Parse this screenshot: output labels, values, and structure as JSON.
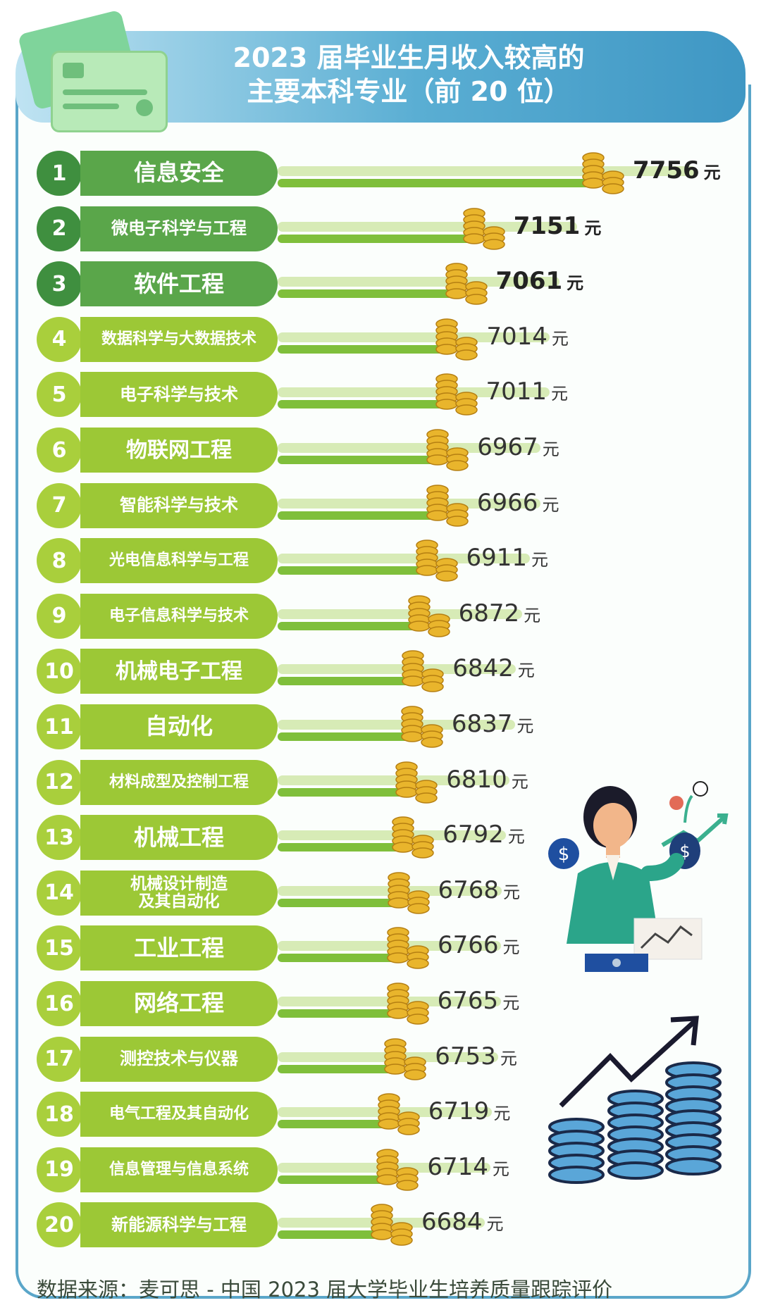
{
  "header": {
    "title_line1": "2023 届毕业生月收入较高的",
    "title_line2": "主要本科专业（前 20 位）"
  },
  "chart_data": {
    "type": "bar",
    "orientation": "horizontal",
    "title": "2023 届毕业生月收入较高的主要本科专业（前 20 位）",
    "unit": "元",
    "categories": [
      "信息安全",
      "微电子科学与工程",
      "软件工程",
      "数据科学与大数据技术",
      "电子科学与技术",
      "物联网工程",
      "智能科学与技术",
      "光电信息科学与工程",
      "电子信息科学与技术",
      "机械电子工程",
      "自动化",
      "材料成型及控制工程",
      "机械工程",
      "机械设计制造及其自动化",
      "工业工程",
      "网络工程",
      "测控技术与仪器",
      "电气工程及其自动化",
      "信息管理与信息系统",
      "新能源科学与工程"
    ],
    "ranks": [
      "1",
      "2",
      "3",
      "4",
      "5",
      "6",
      "7",
      "8",
      "9",
      "10",
      "11",
      "12",
      "13",
      "14",
      "15",
      "16",
      "17",
      "18",
      "19",
      "20"
    ],
    "values": [
      7756,
      7151,
      7061,
      7014,
      7011,
      6967,
      6966,
      6911,
      6872,
      6842,
      6837,
      6810,
      6792,
      6768,
      6766,
      6765,
      6753,
      6719,
      6714,
      6684
    ],
    "value_labels": [
      "7756",
      "7151",
      "7061",
      "7014",
      "7011",
      "6967",
      "6966",
      "6911",
      "6872",
      "6842",
      "6837",
      "6810",
      "6792",
      "6768",
      "6766",
      "6765",
      "6753",
      "6719",
      "6714",
      "6684"
    ],
    "name_line_breaks": {
      "13": [
        "机械设计制造",
        "及其自动化"
      ]
    }
  },
  "colors": {
    "top3_dark": "#3f8f3f",
    "top3_mid": "#5aa64a",
    "rest_circle": "#a9cf3c",
    "rest_pill": "#9cc836",
    "bar_light": "#d7ebb6",
    "bar_dark": "#7fbf3b",
    "header": "#3f97c4"
  },
  "footer": {
    "source": "数据来源：麦可思 - 中国 2023 届大学毕业生培养质量跟踪评价"
  },
  "icons": [
    "credit-card-icon",
    "coin-stack-icon",
    "woman-money-bag-icon",
    "rising-coin-stacks-icon"
  ]
}
